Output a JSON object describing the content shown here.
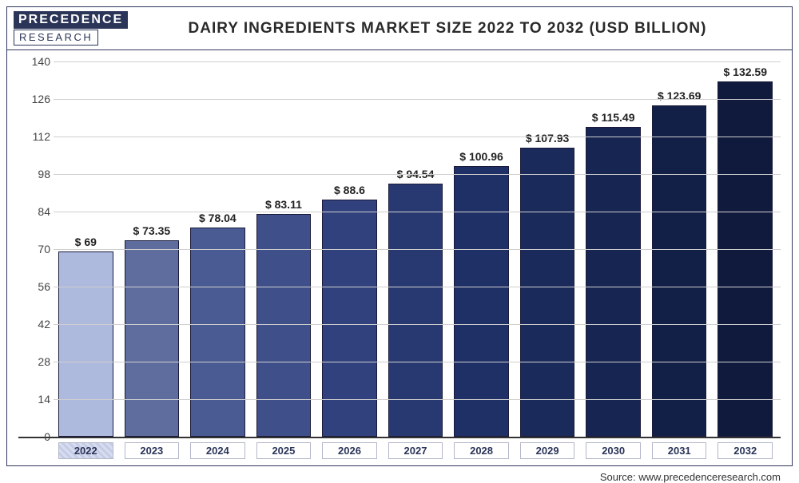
{
  "logo": {
    "top": "PRECEDENCE",
    "bottom": "RESEARCH"
  },
  "title": "DAIRY INGREDIENTS MARKET SIZE 2022 TO 2032 (USD BILLION)",
  "source": "Source: www.precedenceresearch.com",
  "chart": {
    "type": "bar",
    "ylim": [
      0,
      140
    ],
    "ytick_step": 14,
    "yticks": [
      0,
      14,
      28,
      42,
      56,
      70,
      84,
      98,
      112,
      126,
      140
    ],
    "grid_color": "#cfcfcf",
    "background_color": "#ffffff",
    "axis_color": "#333333",
    "title_fontsize": 19,
    "label_fontsize": 14,
    "categories": [
      "2022",
      "2023",
      "2024",
      "2025",
      "2026",
      "2027",
      "2028",
      "2029",
      "2030",
      "2031",
      "2032"
    ],
    "values": [
      69,
      73.35,
      78.04,
      83.11,
      88.6,
      94.54,
      100.96,
      107.93,
      115.49,
      123.69,
      132.59
    ],
    "value_labels": [
      "$ 69",
      "$ 73.35",
      "$ 78.04",
      "$ 83.11",
      "$ 88.6",
      "$ 94.54",
      "$ 100.96",
      "$ 107.93",
      "$ 115.49",
      "$ 123.69",
      "$ 132.59"
    ],
    "bar_colors": [
      "#adb9dd",
      "#5f6d9e",
      "#4a5a92",
      "#3e4f8a",
      "#30417d",
      "#283971",
      "#1f3066",
      "#1a2a5b",
      "#162551",
      "#121f46",
      "#101a3d"
    ],
    "bar_border_color": "#1a1a3a",
    "bar_width": 0.78,
    "highlight_first_category": true,
    "x_label_border_color": "#b3b7c9",
    "x_label_text_color": "#2b3558"
  }
}
